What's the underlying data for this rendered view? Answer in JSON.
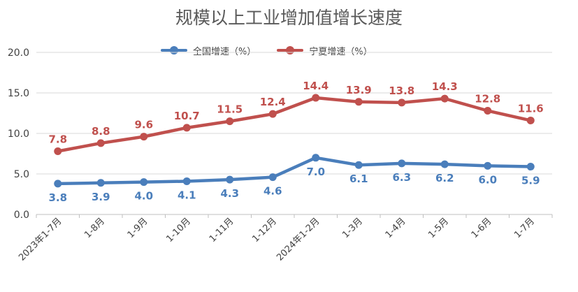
{
  "chart_data": {
    "type": "line",
    "title": "规模以上工业增加值增长速度",
    "categories": [
      "2023年1-7月",
      "1-8月",
      "1-9月",
      "1-10月",
      "1-11月",
      "1-12月",
      "2024年1-2月",
      "1-3月",
      "1-4月",
      "1-5月",
      "1-6月",
      "1-7月"
    ],
    "series": [
      {
        "name": "全国增速（%）",
        "color": "#4a7ebb",
        "values": [
          3.8,
          3.9,
          4.0,
          4.1,
          4.3,
          4.6,
          7.0,
          6.1,
          6.3,
          6.2,
          6.0,
          5.9
        ],
        "labels": [
          "3.8",
          "3.9",
          "4.0",
          "4.1",
          "4.3",
          "4.6",
          "7.0",
          "6.1",
          "6.3",
          "6.2",
          "6.0",
          "5.9"
        ]
      },
      {
        "name": "宁夏增速（%）",
        "color": "#c0504d",
        "values": [
          7.8,
          8.8,
          9.6,
          10.7,
          11.5,
          12.4,
          14.4,
          13.9,
          13.8,
          14.3,
          12.8,
          11.6
        ],
        "labels": [
          "7.8",
          "8.8",
          "9.6",
          "10.7",
          "11.5",
          "12.4",
          "14.4",
          "13.9",
          "13.8",
          "14.3",
          "12.8",
          "11.6"
        ]
      }
    ],
    "ylim": [
      0,
      20
    ],
    "yticks": [
      "0.0",
      "5.0",
      "10.0",
      "15.0",
      "20.0"
    ],
    "grid": true,
    "legend_position": "top"
  }
}
